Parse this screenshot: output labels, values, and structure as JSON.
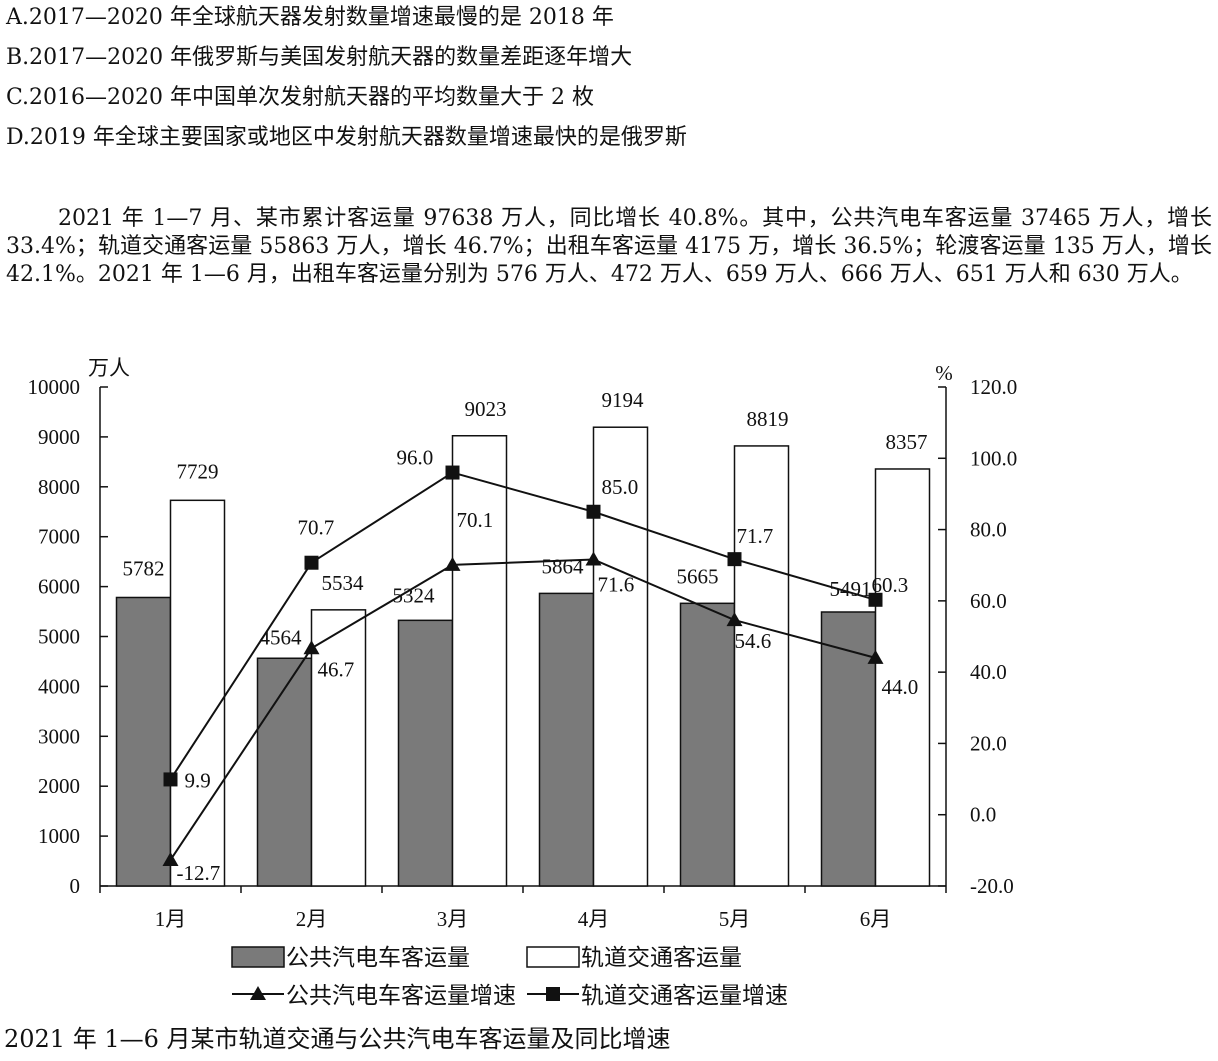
{
  "options": [
    "A.2017—2020 年全球航天器发射数量增速最慢的是 2018 年",
    "B.2017—2020 年俄罗斯与美国发射航天器的数量差距逐年增大",
    "C.2016—2020 年中国单次发射航天器的平均数量大于 2 枚",
    "D.2019 年全球主要国家或地区中发射航天器数量增速最快的是俄罗斯"
  ],
  "passage": "2021 年 1—7 月、某市累计客运量 97638 万人，同比增长 40.8%。其中，公共汽电车客运量 37465 万人，增长 33.4%；轨道交通客运量 55863 万人，增长 46.7%；出租车客运量 4175 万，增长 36.5%；轮渡客运量 135 万人，增长 42.1%。2021 年 1—6 月，出租车客运量分别为 576 万人、472 万人、659 万人、666 万人、651 万人和 630 万人。",
  "caption": "2021 年 1—6 月某市轨道交通与公共汽电车客运量及同比增速",
  "chart_data": {
    "type": "bar",
    "categories": [
      "1月",
      "2月",
      "3月",
      "4月",
      "5月",
      "6月"
    ],
    "series": [
      {
        "name": "公共汽电车客运量",
        "kind": "bar",
        "axis": "left",
        "color": "#7a7a7a",
        "values": [
          5782,
          4564,
          5324,
          5864,
          5665,
          5491
        ]
      },
      {
        "name": "轨道交通客运量",
        "kind": "bar",
        "axis": "left",
        "color": "#ffffff",
        "values": [
          7729,
          5534,
          9023,
          9194,
          8819,
          8357
        ]
      },
      {
        "name": "公共汽电车客运量增速",
        "kind": "line",
        "marker": "triangle",
        "axis": "right",
        "values": [
          -12.7,
          46.7,
          70.1,
          71.6,
          54.6,
          44.0
        ]
      },
      {
        "name": "轨道交通客运量增速",
        "kind": "line",
        "marker": "square",
        "axis": "right",
        "values": [
          9.9,
          70.7,
          96.0,
          85.0,
          71.7,
          60.3
        ]
      }
    ],
    "y_left": {
      "label": "万人",
      "min": 0,
      "max": 10000,
      "step": 1000,
      "ticks": [
        "0",
        "1000",
        "2000",
        "3000",
        "4000",
        "5000",
        "6000",
        "7000",
        "8000",
        "9000",
        "10000"
      ]
    },
    "y_right": {
      "label": "%",
      "min": -20,
      "max": 120,
      "step": 20,
      "ticks": [
        "-20.0",
        "0.0",
        "20.0",
        "40.0",
        "60.0",
        "80.0",
        "100.0",
        "120.0"
      ]
    },
    "legend": "bottom",
    "grid": false
  }
}
